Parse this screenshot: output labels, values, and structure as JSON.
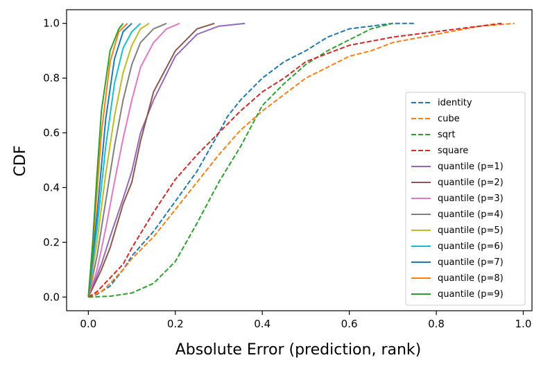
{
  "chart_data": {
    "type": "line",
    "title": "",
    "xlabel": "Absolute Error (prediction, rank)",
    "ylabel": "CDF",
    "xlim": [
      -0.05,
      1.02
    ],
    "ylim": [
      -0.05,
      1.05
    ],
    "xticks": [
      0.0,
      0.2,
      0.4,
      0.6,
      0.8,
      1.0
    ],
    "xtick_labels": [
      "0.0",
      "0.2",
      "0.4",
      "0.6",
      "0.8",
      "1.0"
    ],
    "yticks": [
      0.0,
      0.2,
      0.4,
      0.6,
      0.8,
      1.0
    ],
    "ytick_labels": [
      "0.0",
      "0.2",
      "0.4",
      "0.6",
      "0.8",
      "1.0"
    ],
    "grid": false,
    "legend_position": "lower-right",
    "series": [
      {
        "name": "identity",
        "color": "#1f77b4",
        "dashed": true,
        "x": [
          0,
          0.02,
          0.05,
          0.08,
          0.1,
          0.15,
          0.2,
          0.25,
          0.3,
          0.32,
          0.35,
          0.4,
          0.45,
          0.5,
          0.55,
          0.6,
          0.65,
          0.7,
          0.75
        ],
        "y": [
          0,
          0.01,
          0.04,
          0.1,
          0.15,
          0.24,
          0.35,
          0.46,
          0.6,
          0.66,
          0.72,
          0.8,
          0.86,
          0.9,
          0.95,
          0.98,
          0.99,
          1.0,
          1.0
        ]
      },
      {
        "name": "cube",
        "color": "#ff7f0e",
        "dashed": true,
        "x": [
          0,
          0.03,
          0.05,
          0.08,
          0.1,
          0.15,
          0.2,
          0.25,
          0.3,
          0.35,
          0.4,
          0.45,
          0.5,
          0.55,
          0.6,
          0.65,
          0.7,
          0.8,
          0.9,
          0.98
        ],
        "y": [
          0,
          0.02,
          0.05,
          0.1,
          0.14,
          0.22,
          0.32,
          0.42,
          0.52,
          0.61,
          0.68,
          0.74,
          0.8,
          0.84,
          0.88,
          0.9,
          0.93,
          0.96,
          0.99,
          1.0
        ]
      },
      {
        "name": "sqrt",
        "color": "#2ca02c",
        "dashed": true,
        "x": [
          0,
          0.05,
          0.1,
          0.15,
          0.2,
          0.25,
          0.3,
          0.35,
          0.4,
          0.45,
          0.5,
          0.55,
          0.6,
          0.65,
          0.7
        ],
        "y": [
          0,
          0.003,
          0.015,
          0.05,
          0.13,
          0.27,
          0.42,
          0.55,
          0.7,
          0.78,
          0.85,
          0.9,
          0.94,
          0.98,
          1.0
        ]
      },
      {
        "name": "square",
        "color": "#d62728",
        "dashed": true,
        "x": [
          0,
          0.02,
          0.05,
          0.08,
          0.1,
          0.15,
          0.2,
          0.25,
          0.3,
          0.35,
          0.4,
          0.45,
          0.5,
          0.55,
          0.6,
          0.7,
          0.8,
          0.9,
          0.95
        ],
        "y": [
          0,
          0.02,
          0.07,
          0.12,
          0.18,
          0.31,
          0.43,
          0.52,
          0.6,
          0.68,
          0.75,
          0.8,
          0.86,
          0.89,
          0.92,
          0.95,
          0.97,
          0.99,
          1.0
        ]
      },
      {
        "name": "quantile (p=1)",
        "color": "#9467bd",
        "dashed": false,
        "x": [
          0,
          0.03,
          0.05,
          0.08,
          0.1,
          0.12,
          0.15,
          0.2,
          0.25,
          0.3,
          0.36
        ],
        "y": [
          0,
          0.12,
          0.22,
          0.36,
          0.46,
          0.6,
          0.72,
          0.88,
          0.96,
          0.99,
          1.0
        ]
      },
      {
        "name": "quantile (p=2)",
        "color": "#8c564b",
        "dashed": false,
        "x": [
          0,
          0.03,
          0.05,
          0.08,
          0.1,
          0.12,
          0.15,
          0.2,
          0.25,
          0.29
        ],
        "y": [
          0,
          0.1,
          0.18,
          0.34,
          0.42,
          0.57,
          0.75,
          0.9,
          0.98,
          1.0
        ]
      },
      {
        "name": "quantile (p=3)",
        "color": "#e377c2",
        "dashed": false,
        "x": [
          0,
          0.02,
          0.04,
          0.06,
          0.08,
          0.1,
          0.12,
          0.15,
          0.18,
          0.21
        ],
        "y": [
          0,
          0.1,
          0.25,
          0.42,
          0.58,
          0.72,
          0.84,
          0.93,
          0.98,
          1.0
        ]
      },
      {
        "name": "quantile (p=4)",
        "color": "#7f7f7f",
        "dashed": false,
        "x": [
          0,
          0.02,
          0.04,
          0.06,
          0.08,
          0.1,
          0.12,
          0.15,
          0.18
        ],
        "y": [
          0,
          0.15,
          0.35,
          0.55,
          0.72,
          0.85,
          0.93,
          0.98,
          1.0
        ]
      },
      {
        "name": "quantile (p=5)",
        "color": "#bcbd22",
        "dashed": false,
        "x": [
          0,
          0.02,
          0.04,
          0.06,
          0.08,
          0.1,
          0.12,
          0.14
        ],
        "y": [
          0,
          0.2,
          0.45,
          0.66,
          0.82,
          0.92,
          0.98,
          1.0
        ]
      },
      {
        "name": "quantile (p=6)",
        "color": "#17becf",
        "dashed": false,
        "x": [
          0,
          0.02,
          0.04,
          0.06,
          0.08,
          0.1,
          0.12
        ],
        "y": [
          0,
          0.25,
          0.55,
          0.78,
          0.91,
          0.97,
          1.0
        ]
      },
      {
        "name": "quantile (p=7)",
        "color": "#1f77b4",
        "dashed": false,
        "x": [
          0,
          0.02,
          0.04,
          0.06,
          0.08,
          0.1
        ],
        "y": [
          0,
          0.3,
          0.65,
          0.87,
          0.97,
          1.0
        ]
      },
      {
        "name": "quantile (p=8)",
        "color": "#ff7f0e",
        "dashed": false,
        "x": [
          0,
          0.015,
          0.03,
          0.05,
          0.07,
          0.09
        ],
        "y": [
          0,
          0.28,
          0.6,
          0.86,
          0.97,
          1.0
        ]
      },
      {
        "name": "quantile (p=9)",
        "color": "#2ca02c",
        "dashed": false,
        "x": [
          0,
          0.01,
          0.02,
          0.03,
          0.05,
          0.07,
          0.08
        ],
        "y": [
          0,
          0.2,
          0.45,
          0.68,
          0.9,
          0.98,
          1.0
        ]
      }
    ]
  }
}
